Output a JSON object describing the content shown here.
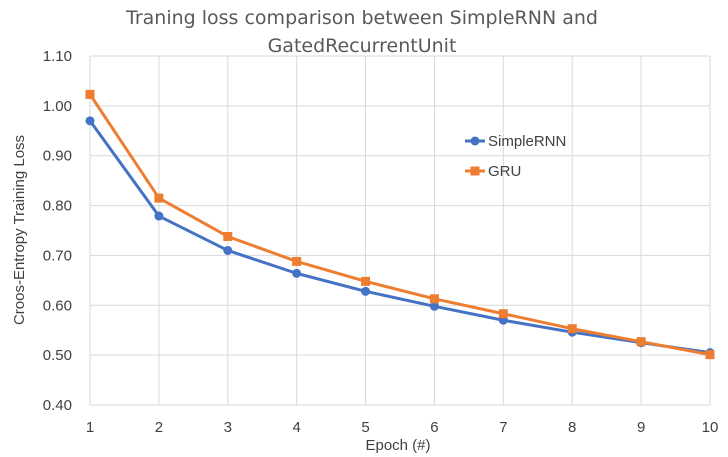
{
  "chart_data": {
    "type": "line",
    "title_lines": [
      "Traning loss comparison between SimpleRNN and",
      "GatedRecurrentUnit"
    ],
    "xlabel": "Epoch (#)",
    "ylabel": "Croos-Entropy Training Loss",
    "x": [
      1,
      2,
      3,
      4,
      5,
      6,
      7,
      8,
      9,
      10
    ],
    "x_tick_labels": [
      "1",
      "2",
      "3",
      "4",
      "5",
      "6",
      "7",
      "8",
      "9",
      "10"
    ],
    "ylim": [
      0.4,
      1.1
    ],
    "y_tick_labels": [
      "0.40",
      "0.50",
      "0.60",
      "0.70",
      "0.80",
      "0.90",
      "1.00",
      "1.10"
    ],
    "grid": true,
    "legend_position": "right",
    "series": [
      {
        "name": "SimpleRNN",
        "color": "#4472c4",
        "marker": "circle",
        "values": [
          0.97,
          0.779,
          0.71,
          0.664,
          0.628,
          0.598,
          0.57,
          0.546,
          0.525,
          0.505
        ]
      },
      {
        "name": "GRU",
        "color": "#ed7d31",
        "marker": "square",
        "values": [
          1.023,
          0.815,
          0.738,
          0.688,
          0.648,
          0.613,
          0.583,
          0.553,
          0.527,
          0.501
        ]
      }
    ]
  }
}
